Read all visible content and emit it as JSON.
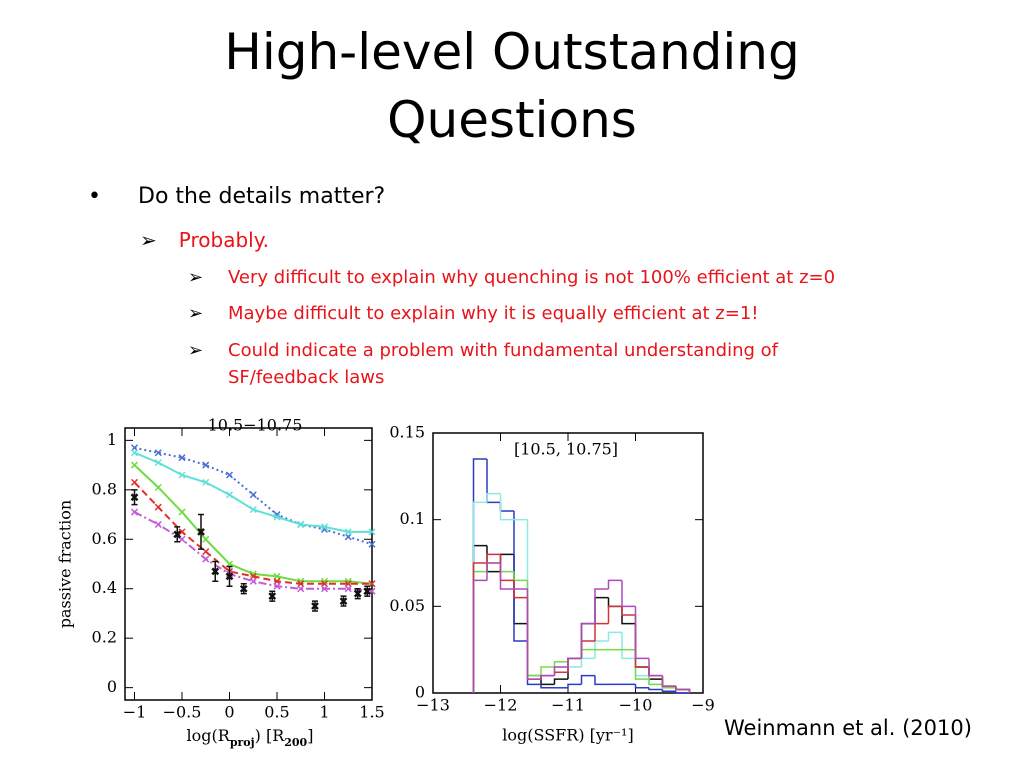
{
  "title": "High-level Outstanding Questions",
  "bullets": {
    "text": "Do the details matter?",
    "sub": {
      "text": "Probably.",
      "items": [
        "Very difficult to explain why quenching is not 100% efficient at z=0",
        "Maybe difficult to explain why it is equally efficient at z=1!",
        "Could indicate a problem with fundamental understanding of SF/feedback laws"
      ]
    }
  },
  "citation": "Weinmann et al. (2010)",
  "chart_data": [
    {
      "type": "line",
      "title": "10.5−10.75",
      "y_label": "passive fraction",
      "x_label": [
        "log(R",
        "proj",
        ") [R",
        "200",
        "]"
      ],
      "x": [
        -1,
        -0.75,
        -0.5,
        -0.25,
        0,
        0.25,
        0.5,
        0.75,
        1,
        1.25,
        1.5
      ],
      "xlim": [
        -1.1,
        1.5
      ],
      "ylim": [
        -0.05,
        1.05
      ],
      "xticks": [
        {
          "value": -1,
          "label": "−1"
        },
        {
          "value": -0.5,
          "label": "−0.5"
        },
        0,
        0.5,
        1,
        1.5
      ],
      "yticks": [
        0,
        0.2,
        0.4,
        0.6,
        0.8,
        1
      ],
      "series": [
        {
          "color": "#4a6fd6",
          "dash": "2 3",
          "values": [
            0.97,
            0.95,
            0.93,
            0.9,
            0.86,
            0.78,
            0.7,
            0.66,
            0.64,
            0.61,
            0.58
          ]
        },
        {
          "color": "#5fe0d8",
          "dash": "none",
          "values": [
            0.95,
            0.91,
            0.86,
            0.83,
            0.78,
            0.72,
            0.69,
            0.66,
            0.65,
            0.63,
            0.63
          ]
        },
        {
          "color": "#6edc3c",
          "dash": "none",
          "values": [
            0.9,
            0.81,
            0.71,
            0.6,
            0.5,
            0.46,
            0.45,
            0.43,
            0.43,
            0.43,
            0.42
          ]
        },
        {
          "color": "#e0302c",
          "dash": "7 4",
          "values": [
            0.83,
            0.73,
            0.63,
            0.55,
            0.47,
            0.45,
            0.43,
            0.42,
            0.42,
            0.42,
            0.42
          ]
        },
        {
          "color": "#c45ad8",
          "dash": "8 3 2 3",
          "values": [
            0.71,
            0.66,
            0.6,
            0.52,
            0.46,
            0.43,
            0.41,
            0.4,
            0.4,
            0.4,
            0.39
          ]
        }
      ],
      "points": {
        "color": "#111111",
        "x": [
          -1,
          -0.55,
          -0.3,
          -0.15,
          0,
          0.15,
          0.45,
          0.9,
          1.2,
          1.35,
          1.45
        ],
        "values": [
          0.77,
          0.62,
          0.63,
          0.47,
          0.45,
          0.4,
          0.37,
          0.33,
          0.35,
          0.38,
          0.39
        ],
        "errors": [
          0.03,
          0.03,
          0.07,
          0.04,
          0.04,
          0.02,
          0.02,
          0.02,
          0.02,
          0.02,
          0.02
        ]
      }
    },
    {
      "type": "histogram",
      "title": "[10.5, 10.75]",
      "x_label": "log(SSFR) [yr⁻¹]",
      "bins": [
        -12.4,
        -12.2,
        -12,
        -11.8,
        -11.6,
        -11.4,
        -11.2,
        -11,
        -10.8,
        -10.6,
        -10.4,
        -10.2,
        -10,
        -9.8,
        -9.6,
        -9.4,
        -9.2
      ],
      "xlim": [
        -13,
        -9
      ],
      "ylim": [
        0,
        0.15
      ],
      "xticks": [
        {
          "value": -13,
          "label": "−13"
        },
        {
          "value": -12,
          "label": "−12"
        },
        {
          "value": -11,
          "label": "−11"
        },
        {
          "value": -10,
          "label": "−10"
        },
        {
          "value": -9,
          "label": "−9"
        }
      ],
      "yticks": [
        0,
        0.05,
        0.1,
        0.15
      ],
      "series": [
        {
          "color": "#111111",
          "values": [
            0.085,
            0.07,
            0.08,
            0.04,
            0.01,
            0.005,
            0.008,
            0.02,
            0.04,
            0.055,
            0.05,
            0.04,
            0.015,
            0.008,
            0.003,
            0.002
          ]
        },
        {
          "color": "#2a3cc8",
          "values": [
            0.135,
            0.11,
            0.105,
            0.03,
            0.005,
            0.003,
            0.003,
            0.005,
            0.01,
            0.005,
            0.005,
            0.005,
            0.003,
            0.002,
            0.001,
            0
          ]
        },
        {
          "color": "#8ee8e4",
          "values": [
            0.11,
            0.115,
            0.1,
            0.1,
            0.01,
            0.01,
            0.015,
            0.015,
            0.02,
            0.03,
            0.035,
            0.02,
            0.01,
            0.005,
            0.003,
            0.002
          ]
        },
        {
          "color": "#7ad84a",
          "values": [
            0.07,
            0.075,
            0.07,
            0.065,
            0.01,
            0.015,
            0.018,
            0.02,
            0.025,
            0.025,
            0.025,
            0.025,
            0.008,
            0.005,
            0.003,
            0.002
          ]
        },
        {
          "color": "#d2333a",
          "values": [
            0.075,
            0.08,
            0.065,
            0.055,
            0.008,
            0.01,
            0.012,
            0.02,
            0.03,
            0.04,
            0.05,
            0.045,
            0.015,
            0.01,
            0.004,
            0.002
          ]
        },
        {
          "color": "#b04ab8",
          "values": [
            0.065,
            0.075,
            0.06,
            0.06,
            0.008,
            0.01,
            0.015,
            0.02,
            0.04,
            0.06,
            0.065,
            0.05,
            0.02,
            0.01,
            0.004,
            0.002
          ]
        }
      ]
    }
  ]
}
